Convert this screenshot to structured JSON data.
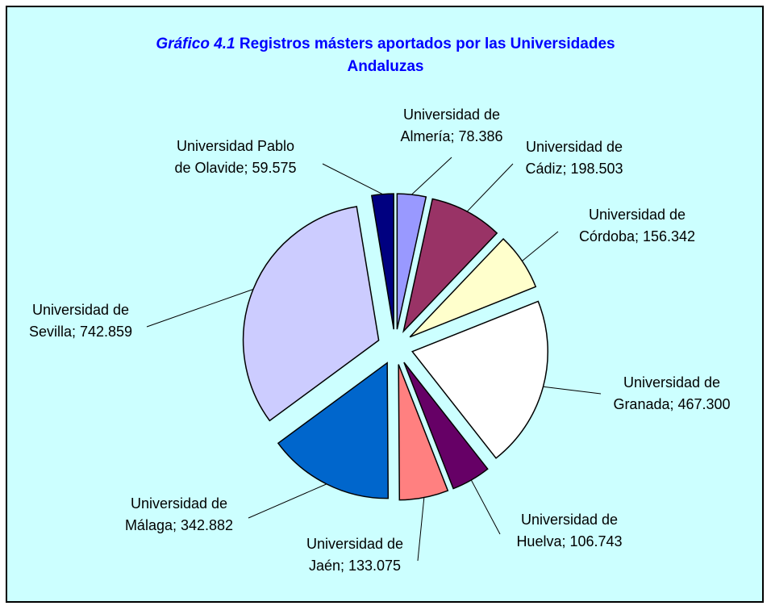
{
  "chart_data": {
    "type": "pie",
    "title_label": "Gráfico 4.1",
    "title": "Registros másters aportados por las Universidades Andaluzas",
    "values": [
      78386,
      198503,
      156342,
      467300,
      106743,
      133075,
      342882,
      742859,
      59575
    ],
    "value_labels": [
      "Universidad de Almería; 78.386",
      "Universidad de Cádiz; 198.503",
      "Universidad de Córdoba; 156.342",
      "Universidad de Granada; 467.300",
      "Universidad de Huelva; 106.743",
      "Universidad de Jaén; 133.075",
      "Universidad de Málaga; 342.882",
      "Universidad de Sevilla; 742.859",
      "Universidad Pablo de Olavide; 59.575"
    ],
    "colors": [
      "#9999ff",
      "#993366",
      "#ffffcc",
      "#ffffff",
      "#660066",
      "#ff8080",
      "#0066cc",
      "#ccccff",
      "#000080"
    ],
    "background": "#ccffff"
  }
}
